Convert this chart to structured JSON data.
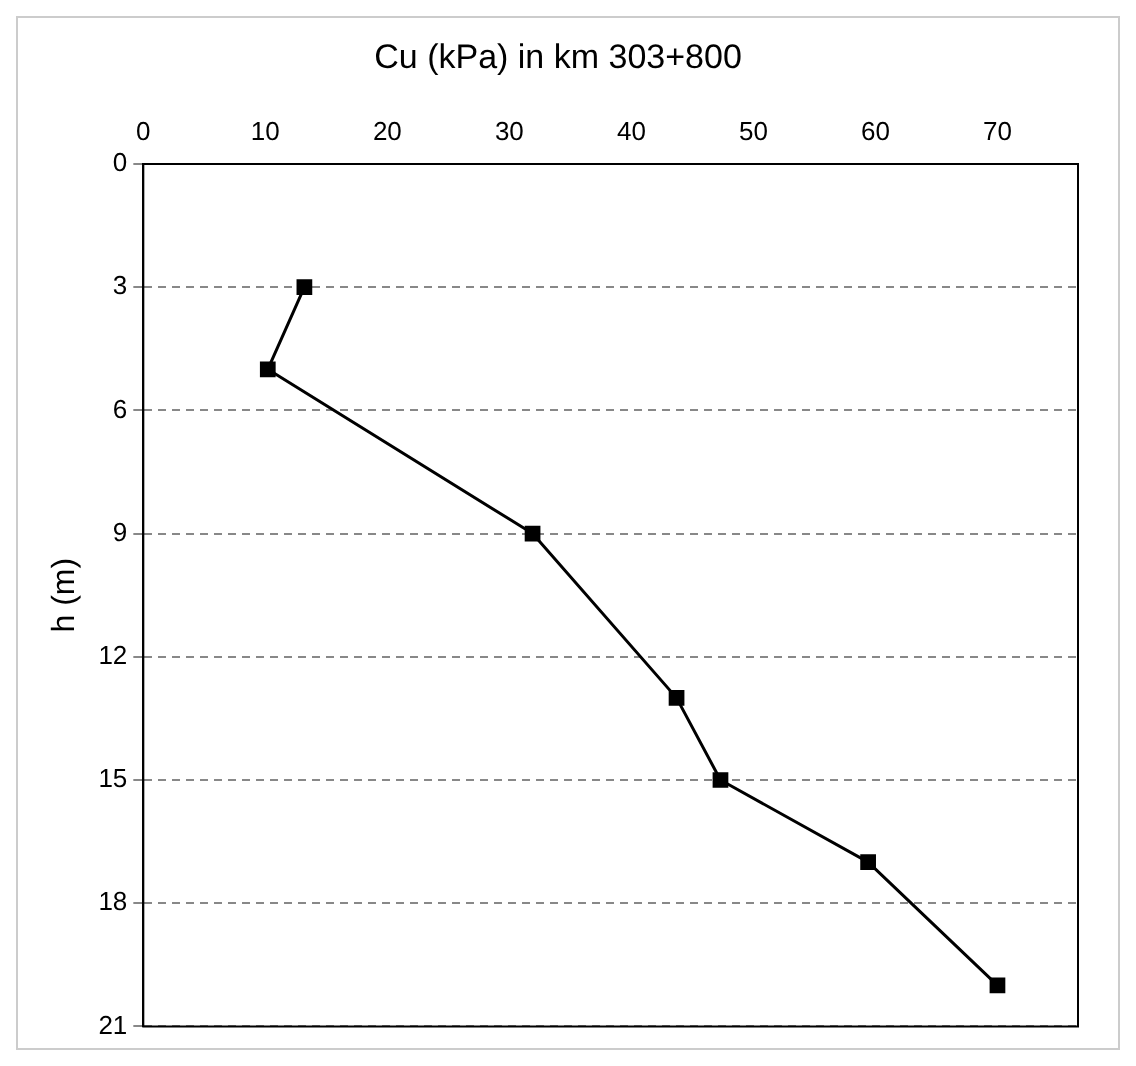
{
  "chart_data": {
    "type": "line",
    "title": "Cu (kPa) in km 303+800",
    "ylabel": "h (m)",
    "x": [
      13.2,
      10.2,
      31.9,
      43.7,
      47.3,
      59.4,
      70
    ],
    "series": [
      {
        "color": "#000000",
        "values": [
          3,
          5,
          9,
          13,
          15,
          17,
          20
        ]
      }
    ],
    "xlim": [
      0,
      76.6
    ],
    "xticks": [
      0,
      10,
      20,
      30,
      40,
      50,
      60,
      70
    ],
    "ylim": [
      21,
      0
    ],
    "yticks": [
      0,
      3,
      6,
      9,
      12,
      15,
      18,
      21
    ],
    "grid": "y",
    "legend": false,
    "marker": "square",
    "line_style": "solid"
  }
}
